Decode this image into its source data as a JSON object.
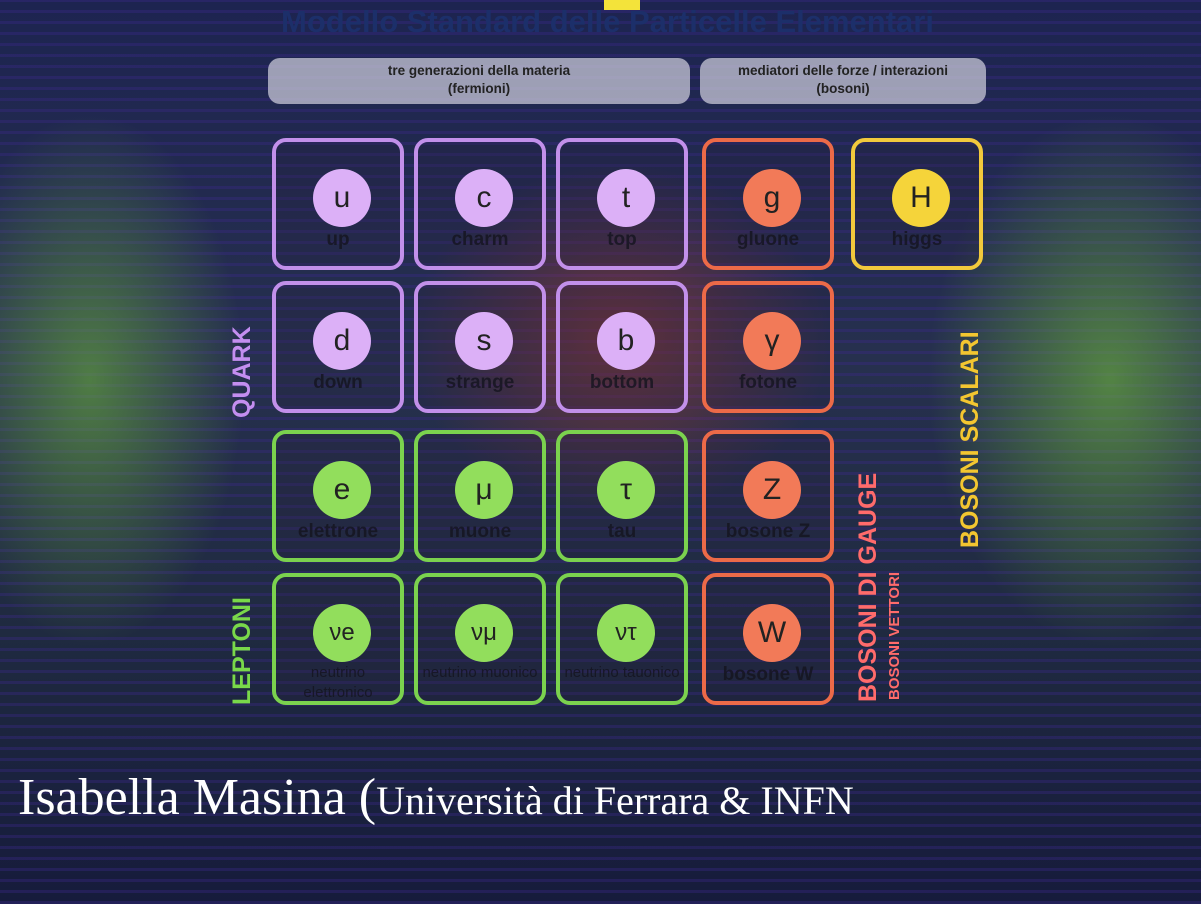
{
  "title": "Modello Standard delle Particelle Elementari",
  "headers": [
    {
      "line1": "tre generazioni della materia",
      "line2": "(fermioni)"
    },
    {
      "line1": "mediatori delle forze / interazioni",
      "line2": "(bosoni)"
    }
  ],
  "cells": [
    [
      {
        "symbol": "u",
        "name": "up"
      },
      {
        "symbol": "c",
        "name": "charm"
      },
      {
        "symbol": "t",
        "name": "top"
      },
      {
        "symbol": "g",
        "name": "gluone"
      },
      {
        "symbol": "H",
        "name": "higgs"
      }
    ],
    [
      {
        "symbol": "d",
        "name": "down"
      },
      {
        "symbol": "s",
        "name": "strange"
      },
      {
        "symbol": "b",
        "name": "bottom"
      },
      {
        "symbol": "γ",
        "name": "fotone"
      }
    ],
    [
      {
        "symbol": "e",
        "name": "elettrone"
      },
      {
        "symbol": "μ",
        "name": "muone"
      },
      {
        "symbol": "τ",
        "name": "tau"
      },
      {
        "symbol": "Z",
        "name": "bosone Z"
      }
    ],
    [
      {
        "symbol": "νe",
        "name": "neutrino elettronico"
      },
      {
        "symbol": "νμ",
        "name": "neutrino muonico"
      },
      {
        "symbol": "ντ",
        "name": "neutrino tauonico"
      },
      {
        "symbol": "W",
        "name": "bosone W"
      }
    ]
  ],
  "group_labels": {
    "quark": "QUARK",
    "leptons": "LEPTONI",
    "gauge": "BOSONI DI GAUGE",
    "vector": "BOSONI VETTORI",
    "scalar": "BOSONI SCALARI"
  },
  "footer": {
    "speaker": "Isabella Masina (",
    "affiliation": "Università di Ferrara & INFN"
  }
}
